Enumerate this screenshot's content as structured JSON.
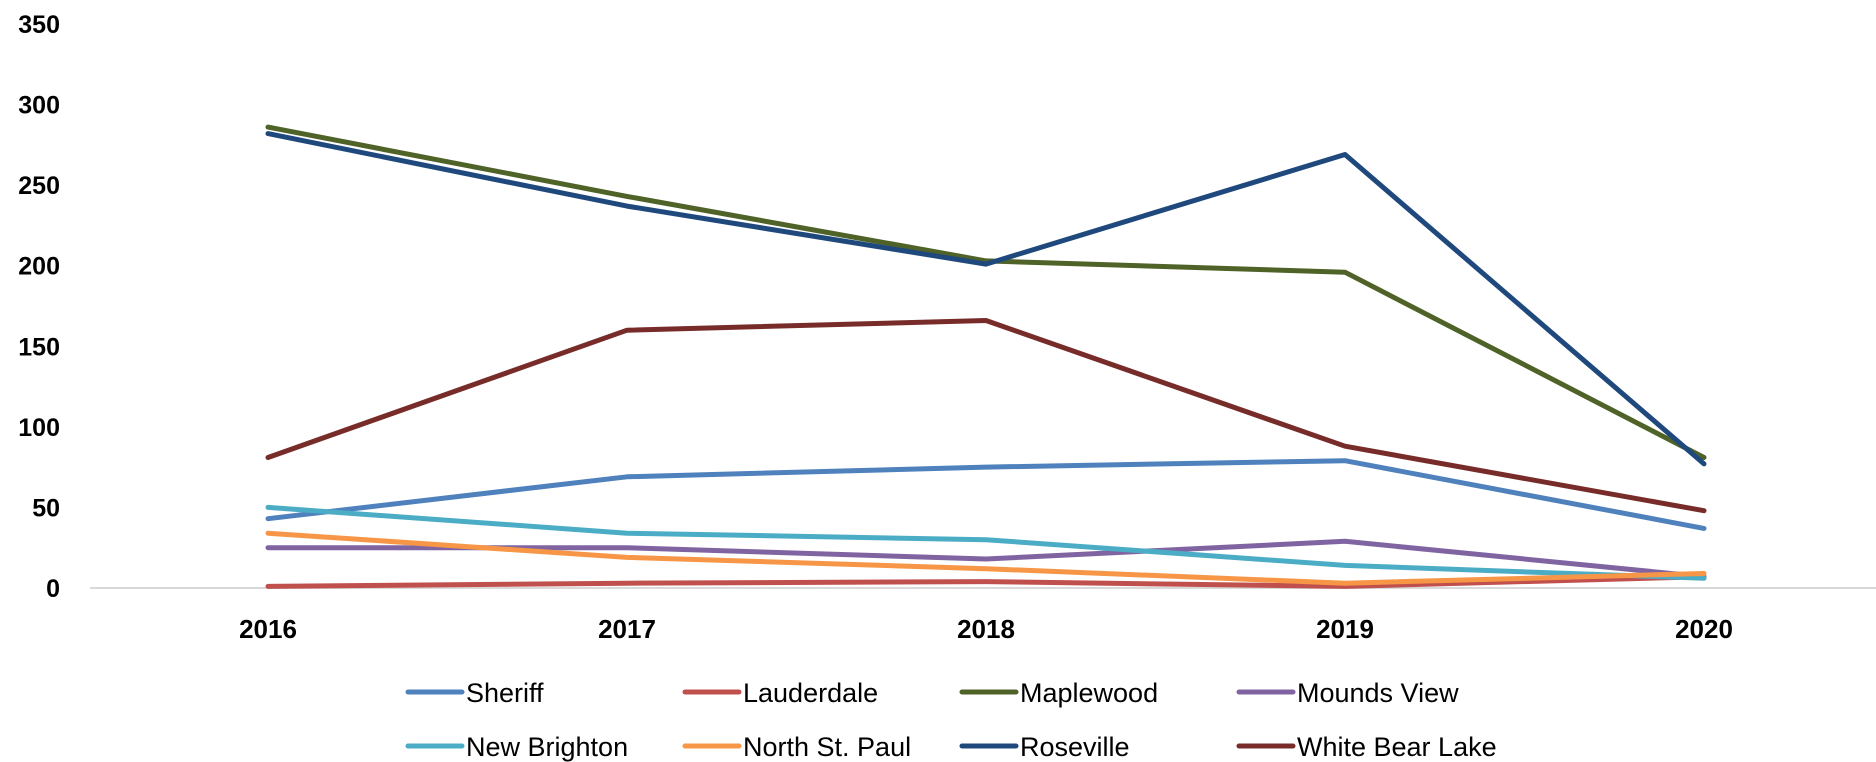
{
  "chart_data": {
    "type": "line",
    "title": "",
    "xlabel": "",
    "ylabel": "",
    "categories": [
      "2016",
      "2017",
      "2018",
      "2019",
      "2020"
    ],
    "ylim": [
      0,
      350
    ],
    "yticks": [
      0,
      50,
      100,
      150,
      200,
      250,
      300,
      350
    ],
    "grid": false,
    "legend": "bottom",
    "series": [
      {
        "name": "Sheriff",
        "color": "#4F81BD",
        "values": [
          43,
          69,
          75,
          79,
          37
        ]
      },
      {
        "name": "Lauderdale",
        "color": "#C0504D",
        "values": [
          1,
          3,
          4,
          1,
          7
        ]
      },
      {
        "name": "Maplewood",
        "color": "#4F6228",
        "values": [
          286,
          243,
          203,
          196,
          81
        ]
      },
      {
        "name": "Mounds View",
        "color": "#8064A2",
        "values": [
          25,
          25,
          18,
          29,
          7
        ]
      },
      {
        "name": "New Brighton",
        "color": "#4BACC6",
        "values": [
          50,
          34,
          30,
          14,
          6
        ]
      },
      {
        "name": "North St. Paul",
        "color": "#F79646",
        "values": [
          34,
          19,
          12,
          3,
          9
        ]
      },
      {
        "name": "Roseville",
        "color": "#1F497D",
        "values": [
          282,
          237,
          201,
          269,
          77
        ]
      },
      {
        "name": "White Bear Lake",
        "color": "#772C2A",
        "values": [
          81,
          160,
          166,
          88,
          48
        ]
      }
    ]
  }
}
